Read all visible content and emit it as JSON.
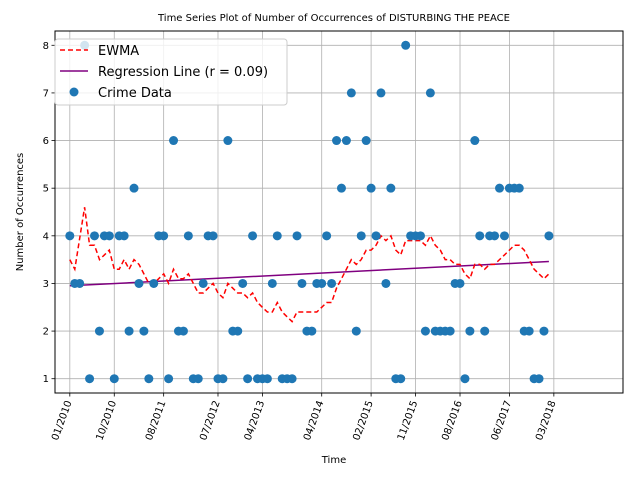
{
  "chart_data": {
    "type": "scatter",
    "title": "Time Series Plot of Number of Occurrences of DISTURBING THE PEACE",
    "xlabel": "Time",
    "ylabel": "Number of Occurrences",
    "ylim": [
      0.7,
      8.3
    ],
    "yticks": [
      1,
      2,
      3,
      4,
      5,
      6,
      7,
      8
    ],
    "xlim": [
      "2009-10",
      "2019-05"
    ],
    "xticks": [
      "2010-01",
      "2010-10",
      "2011-08",
      "2012-07",
      "2013-04",
      "2014-04",
      "2015-02",
      "2015-11",
      "2016-08",
      "2017-06",
      "2018-03"
    ],
    "xtick_labels": [
      "01/2010",
      "10/2010",
      "08/2011",
      "07/2012",
      "04/2013",
      "04/2014",
      "02/2015",
      "11/2015",
      "08/2016",
      "06/2017",
      "03/2018"
    ],
    "grid": true,
    "legend": {
      "position": "top-left",
      "entries": [
        {
          "label": "EWMA",
          "color": "#ff0000",
          "style": "dashed-line"
        },
        {
          "label": "Regression Line (r = 0.09)",
          "color": "#800080",
          "style": "line"
        },
        {
          "label": "Crime Data",
          "color": "#1f77b4",
          "style": "marker"
        }
      ]
    },
    "series": [
      {
        "name": "Crime Data",
        "kind": "scatter",
        "color": "#1f77b4",
        "points": [
          [
            "2010-01",
            4
          ],
          [
            "2010-02",
            3
          ],
          [
            "2010-03",
            3
          ],
          [
            "2010-04",
            8
          ],
          [
            "2010-05",
            1
          ],
          [
            "2010-06",
            4
          ],
          [
            "2010-07",
            2
          ],
          [
            "2010-08",
            4
          ],
          [
            "2010-09",
            4
          ],
          [
            "2010-10",
            1
          ],
          [
            "2010-11",
            4
          ],
          [
            "2010-12",
            4
          ],
          [
            "2011-01",
            2
          ],
          [
            "2011-02",
            5
          ],
          [
            "2011-03",
            3
          ],
          [
            "2011-04",
            2
          ],
          [
            "2011-05",
            1
          ],
          [
            "2011-06",
            3
          ],
          [
            "2011-07",
            4
          ],
          [
            "2011-08",
            4
          ],
          [
            "2011-09",
            1
          ],
          [
            "2011-10",
            6
          ],
          [
            "2011-11",
            2
          ],
          [
            "2011-12",
            2
          ],
          [
            "2012-01",
            4
          ],
          [
            "2012-02",
            1
          ],
          [
            "2012-03",
            1
          ],
          [
            "2012-04",
            3
          ],
          [
            "2012-05",
            4
          ],
          [
            "2012-06",
            4
          ],
          [
            "2012-07",
            1
          ],
          [
            "2012-08",
            1
          ],
          [
            "2012-09",
            6
          ],
          [
            "2012-10",
            2
          ],
          [
            "2012-11",
            2
          ],
          [
            "2012-12",
            3
          ],
          [
            "2013-01",
            1
          ],
          [
            "2013-02",
            4
          ],
          [
            "2013-03",
            1
          ],
          [
            "2013-04",
            1
          ],
          [
            "2013-05",
            1
          ],
          [
            "2013-06",
            3
          ],
          [
            "2013-07",
            4
          ],
          [
            "2013-08",
            1
          ],
          [
            "2013-09",
            1
          ],
          [
            "2013-10",
            1
          ],
          [
            "2013-11",
            4
          ],
          [
            "2013-12",
            3
          ],
          [
            "2014-01",
            2
          ],
          [
            "2014-02",
            2
          ],
          [
            "2014-03",
            3
          ],
          [
            "2014-04",
            3
          ],
          [
            "2014-05",
            4
          ],
          [
            "2014-06",
            3
          ],
          [
            "2014-07",
            6
          ],
          [
            "2014-08",
            5
          ],
          [
            "2014-09",
            6
          ],
          [
            "2014-10",
            7
          ],
          [
            "2014-11",
            2
          ],
          [
            "2014-12",
            4
          ],
          [
            "2015-01",
            6
          ],
          [
            "2015-02",
            5
          ],
          [
            "2015-03",
            4
          ],
          [
            "2015-04",
            7
          ],
          [
            "2015-05",
            3
          ],
          [
            "2015-06",
            5
          ],
          [
            "2015-07",
            1
          ],
          [
            "2015-08",
            1
          ],
          [
            "2015-09",
            8
          ],
          [
            "2015-10",
            4
          ],
          [
            "2015-11",
            4
          ],
          [
            "2015-12",
            4
          ],
          [
            "2016-01",
            2
          ],
          [
            "2016-02",
            7
          ],
          [
            "2016-03",
            2
          ],
          [
            "2016-04",
            2
          ],
          [
            "2016-05",
            2
          ],
          [
            "2016-06",
            2
          ],
          [
            "2016-07",
            3
          ],
          [
            "2016-08",
            3
          ],
          [
            "2016-09",
            1
          ],
          [
            "2016-10",
            2
          ],
          [
            "2016-11",
            6
          ],
          [
            "2016-12",
            4
          ],
          [
            "2017-01",
            2
          ],
          [
            "2017-02",
            4
          ],
          [
            "2017-03",
            4
          ],
          [
            "2017-04",
            5
          ],
          [
            "2017-05",
            4
          ],
          [
            "2017-06",
            5
          ],
          [
            "2017-07",
            5
          ],
          [
            "2017-08",
            5
          ],
          [
            "2017-09",
            2
          ],
          [
            "2017-10",
            2
          ],
          [
            "2017-11",
            1
          ],
          [
            "2017-12",
            1
          ],
          [
            "2018-01",
            2
          ],
          [
            "2018-02",
            4
          ]
        ]
      },
      {
        "name": "EWMA",
        "kind": "line",
        "color": "#ff0000",
        "points": [
          [
            "2010-01",
            3.5
          ],
          [
            "2010-02",
            3.3
          ],
          [
            "2010-04",
            4.6
          ],
          [
            "2010-05",
            3.8
          ],
          [
            "2010-06",
            3.8
          ],
          [
            "2010-07",
            3.5
          ],
          [
            "2010-08",
            3.6
          ],
          [
            "2010-09",
            3.7
          ],
          [
            "2010-10",
            3.3
          ],
          [
            "2010-11",
            3.3
          ],
          [
            "2010-12",
            3.5
          ],
          [
            "2011-01",
            3.3
          ],
          [
            "2011-02",
            3.5
          ],
          [
            "2011-03",
            3.4
          ],
          [
            "2011-04",
            3.2
          ],
          [
            "2011-05",
            3.0
          ],
          [
            "2011-06",
            3.0
          ],
          [
            "2011-07",
            3.1
          ],
          [
            "2011-08",
            3.2
          ],
          [
            "2011-09",
            3.0
          ],
          [
            "2011-10",
            3.3
          ],
          [
            "2011-11",
            3.1
          ],
          [
            "2011-12",
            3.1
          ],
          [
            "2012-01",
            3.2
          ],
          [
            "2012-02",
            3.0
          ],
          [
            "2012-03",
            2.8
          ],
          [
            "2012-04",
            2.8
          ],
          [
            "2012-05",
            2.9
          ],
          [
            "2012-06",
            3.0
          ],
          [
            "2012-07",
            2.8
          ],
          [
            "2012-08",
            2.7
          ],
          [
            "2012-09",
            3.0
          ],
          [
            "2012-10",
            2.9
          ],
          [
            "2012-11",
            2.8
          ],
          [
            "2012-12",
            2.8
          ],
          [
            "2013-01",
            2.7
          ],
          [
            "2013-02",
            2.8
          ],
          [
            "2013-03",
            2.6
          ],
          [
            "2013-04",
            2.5
          ],
          [
            "2013-05",
            2.4
          ],
          [
            "2013-06",
            2.4
          ],
          [
            "2013-07",
            2.6
          ],
          [
            "2013-08",
            2.4
          ],
          [
            "2013-09",
            2.3
          ],
          [
            "2013-10",
            2.2
          ],
          [
            "2013-11",
            2.4
          ],
          [
            "2013-12",
            2.4
          ],
          [
            "2014-01",
            2.4
          ],
          [
            "2014-02",
            2.4
          ],
          [
            "2014-03",
            2.4
          ],
          [
            "2014-04",
            2.5
          ],
          [
            "2014-05",
            2.6
          ],
          [
            "2014-06",
            2.6
          ],
          [
            "2014-07",
            2.9
          ],
          [
            "2014-08",
            3.1
          ],
          [
            "2014-09",
            3.3
          ],
          [
            "2014-10",
            3.5
          ],
          [
            "2014-11",
            3.4
          ],
          [
            "2014-12",
            3.5
          ],
          [
            "2015-01",
            3.7
          ],
          [
            "2015-02",
            3.7
          ],
          [
            "2015-03",
            3.8
          ],
          [
            "2015-04",
            4.0
          ],
          [
            "2015-05",
            3.9
          ],
          [
            "2015-06",
            4.0
          ],
          [
            "2015-07",
            3.7
          ],
          [
            "2015-08",
            3.6
          ],
          [
            "2015-09",
            3.9
          ],
          [
            "2015-10",
            3.9
          ],
          [
            "2015-11",
            3.9
          ],
          [
            "2015-12",
            3.9
          ],
          [
            "2016-01",
            3.8
          ],
          [
            "2016-02",
            4.0
          ],
          [
            "2016-03",
            3.8
          ],
          [
            "2016-04",
            3.7
          ],
          [
            "2016-05",
            3.5
          ],
          [
            "2016-06",
            3.5
          ],
          [
            "2016-07",
            3.4
          ],
          [
            "2016-08",
            3.4
          ],
          [
            "2016-09",
            3.2
          ],
          [
            "2016-10",
            3.1
          ],
          [
            "2016-11",
            3.4
          ],
          [
            "2016-12",
            3.4
          ],
          [
            "2017-01",
            3.3
          ],
          [
            "2017-02",
            3.4
          ],
          [
            "2017-03",
            3.4
          ],
          [
            "2017-04",
            3.5
          ],
          [
            "2017-05",
            3.6
          ],
          [
            "2017-06",
            3.7
          ],
          [
            "2017-07",
            3.8
          ],
          [
            "2017-08",
            3.8
          ],
          [
            "2017-09",
            3.7
          ],
          [
            "2017-10",
            3.5
          ],
          [
            "2017-11",
            3.3
          ],
          [
            "2017-12",
            3.2
          ],
          [
            "2018-01",
            3.1
          ],
          [
            "2018-02",
            3.2
          ]
        ]
      },
      {
        "name": "Regression Line (r = 0.09)",
        "kind": "line",
        "color": "#800080",
        "points": [
          [
            "2010-01",
            2.95
          ],
          [
            "2018-02",
            3.46
          ]
        ]
      }
    ]
  }
}
